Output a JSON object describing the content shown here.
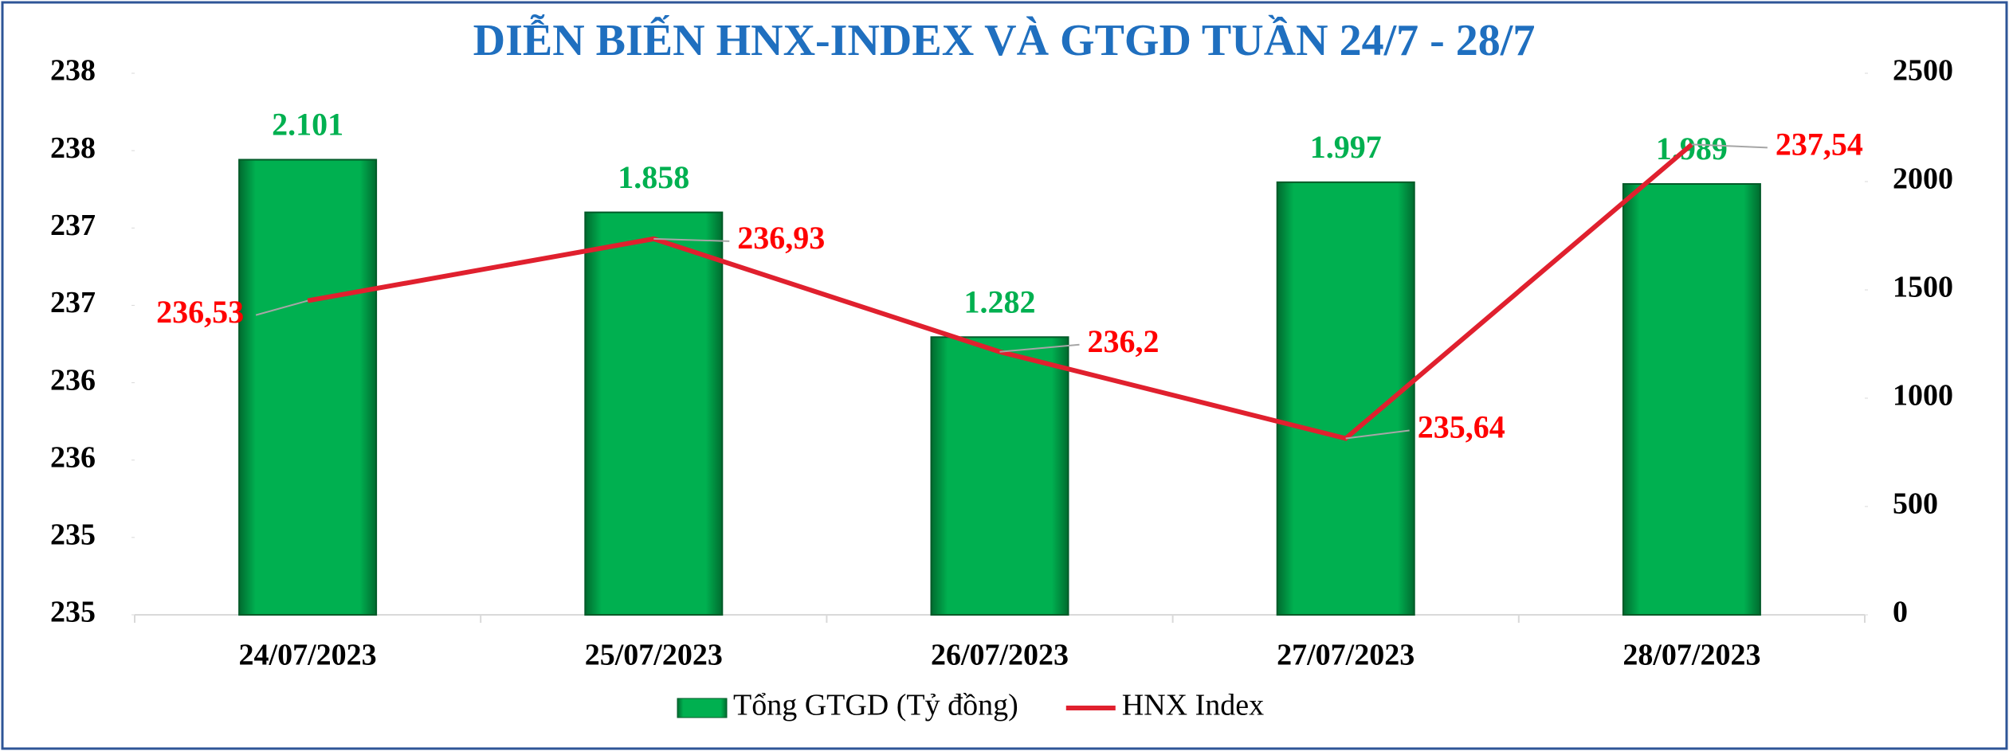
{
  "chart_data": {
    "type": "bar-line",
    "title": "DIỄN BIẾN HNX-INDEX VÀ GTGD TUẦN 24/7 - 28/7",
    "categories": [
      "24/07/2023",
      "25/07/2023",
      "26/07/2023",
      "27/07/2023",
      "28/07/2023"
    ],
    "series": [
      {
        "name": "Tổng GTGD (Tỷ đồng)",
        "type": "bar",
        "axis": "y2",
        "color": "#00b050",
        "values": [
          2101,
          1858,
          1282,
          1997,
          1989
        ],
        "value_labels": [
          "2.101",
          "1.858",
          "1.282",
          "1.997",
          "1.989"
        ]
      },
      {
        "name": "HNX Index",
        "type": "line",
        "axis": "y",
        "color": "#e0202e",
        "values": [
          236.53,
          236.93,
          236.2,
          235.64,
          237.54
        ],
        "value_labels": [
          "236,53",
          "236,93",
          "236,2",
          "235,64",
          "237,54"
        ]
      }
    ],
    "ylim": [
      234.5,
      238
    ],
    "yticks": [
      {
        "value": 234.5,
        "label": "235"
      },
      {
        "value": 235,
        "label": "235"
      },
      {
        "value": 235.5,
        "label": "236"
      },
      {
        "value": 236,
        "label": "236"
      },
      {
        "value": 236.5,
        "label": "237"
      },
      {
        "value": 237,
        "label": "237"
      },
      {
        "value": 237.5,
        "label": "238"
      },
      {
        "value": 238,
        "label": "238"
      }
    ],
    "y2lim": [
      0,
      2500
    ],
    "y2ticks": [
      0,
      500,
      1000,
      1500,
      2000,
      2500
    ],
    "grid": false,
    "legend": "bottom"
  }
}
